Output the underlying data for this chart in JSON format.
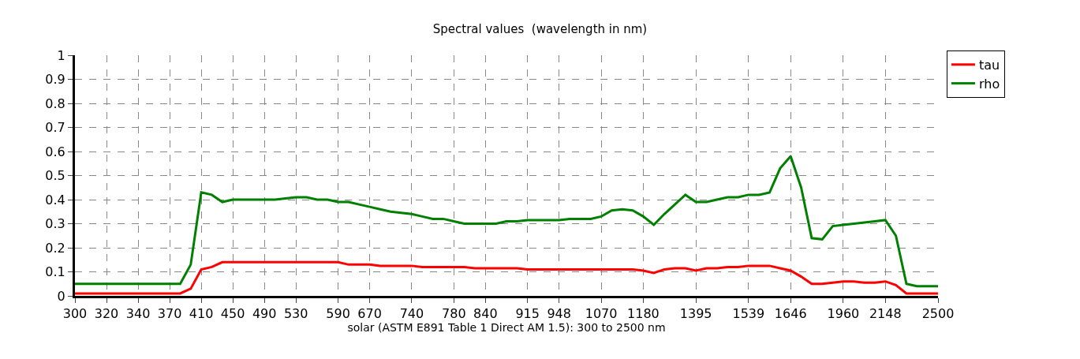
{
  "chart_data": {
    "type": "line",
    "title": "Spectral values  (wavelength in nm)",
    "xlabel": "solar (ASTM E891 Table 1 Direct AM 1.5): 300 to 2500 nm",
    "categories": [
      "300",
      null,
      null,
      "320",
      null,
      null,
      "340",
      null,
      null,
      "370",
      null,
      null,
      "410",
      null,
      null,
      "450",
      null,
      null,
      "490",
      null,
      null,
      "530",
      null,
      null,
      null,
      "590",
      null,
      null,
      "670",
      null,
      null,
      null,
      "740",
      null,
      null,
      null,
      "780",
      null,
      null,
      "840",
      null,
      null,
      null,
      "915",
      null,
      null,
      "948",
      null,
      null,
      null,
      "1070",
      null,
      null,
      null,
      "1180",
      null,
      null,
      null,
      null,
      "1395",
      null,
      null,
      null,
      null,
      "1539",
      null,
      null,
      null,
      "1646",
      null,
      null,
      null,
      null,
      "1960",
      null,
      null,
      null,
      "2148",
      null,
      null,
      null,
      null,
      "2500"
    ],
    "series": [
      {
        "name": "tau",
        "color": "#ff0000",
        "values": [
          0.01,
          0.01,
          0.01,
          0.01,
          0.01,
          0.01,
          0.01,
          0.01,
          0.01,
          0.01,
          0.01,
          0.03,
          0.11,
          0.12,
          0.14,
          0.14,
          0.14,
          0.14,
          0.14,
          0.14,
          0.14,
          0.14,
          0.14,
          0.14,
          0.14,
          0.14,
          0.13,
          0.13,
          0.13,
          0.125,
          0.125,
          0.125,
          0.125,
          0.12,
          0.12,
          0.12,
          0.12,
          0.12,
          0.115,
          0.115,
          0.115,
          0.115,
          0.115,
          0.11,
          0.11,
          0.11,
          0.11,
          0.11,
          0.11,
          0.11,
          0.11,
          0.11,
          0.11,
          0.11,
          0.105,
          0.095,
          0.11,
          0.115,
          0.115,
          0.105,
          0.115,
          0.115,
          0.12,
          0.12,
          0.125,
          0.125,
          0.125,
          0.115,
          0.105,
          0.08,
          0.05,
          0.05,
          0.055,
          0.06,
          0.06,
          0.055,
          0.055,
          0.06,
          0.045,
          0.01,
          0.01,
          0.01,
          0.01
        ]
      },
      {
        "name": "rho",
        "color": "#008000",
        "values": [
          0.05,
          0.05,
          0.05,
          0.05,
          0.05,
          0.05,
          0.05,
          0.05,
          0.05,
          0.05,
          0.05,
          0.13,
          0.43,
          0.42,
          0.39,
          0.4,
          0.4,
          0.4,
          0.4,
          0.4,
          0.405,
          0.41,
          0.41,
          0.4,
          0.4,
          0.39,
          0.39,
          0.38,
          0.37,
          0.36,
          0.35,
          0.345,
          0.34,
          0.33,
          0.32,
          0.32,
          0.31,
          0.3,
          0.3,
          0.3,
          0.3,
          0.31,
          0.31,
          0.315,
          0.315,
          0.315,
          0.315,
          0.32,
          0.32,
          0.32,
          0.33,
          0.355,
          0.36,
          0.355,
          0.33,
          0.295,
          0.34,
          0.38,
          0.42,
          0.39,
          0.39,
          0.4,
          0.41,
          0.41,
          0.42,
          0.42,
          0.43,
          0.53,
          0.58,
          0.45,
          0.24,
          0.235,
          0.29,
          0.295,
          0.3,
          0.305,
          0.31,
          0.315,
          0.25,
          0.05,
          0.04,
          0.04,
          0.04
        ]
      }
    ],
    "ylim": [
      0,
      1
    ],
    "yticks": [
      0,
      0.1,
      0.2,
      0.3,
      0.4,
      0.5,
      0.6,
      0.7,
      0.8,
      0.9,
      1
    ],
    "grid": true,
    "legend": "top right",
    "line_style": "solid",
    "marker": "none"
  }
}
